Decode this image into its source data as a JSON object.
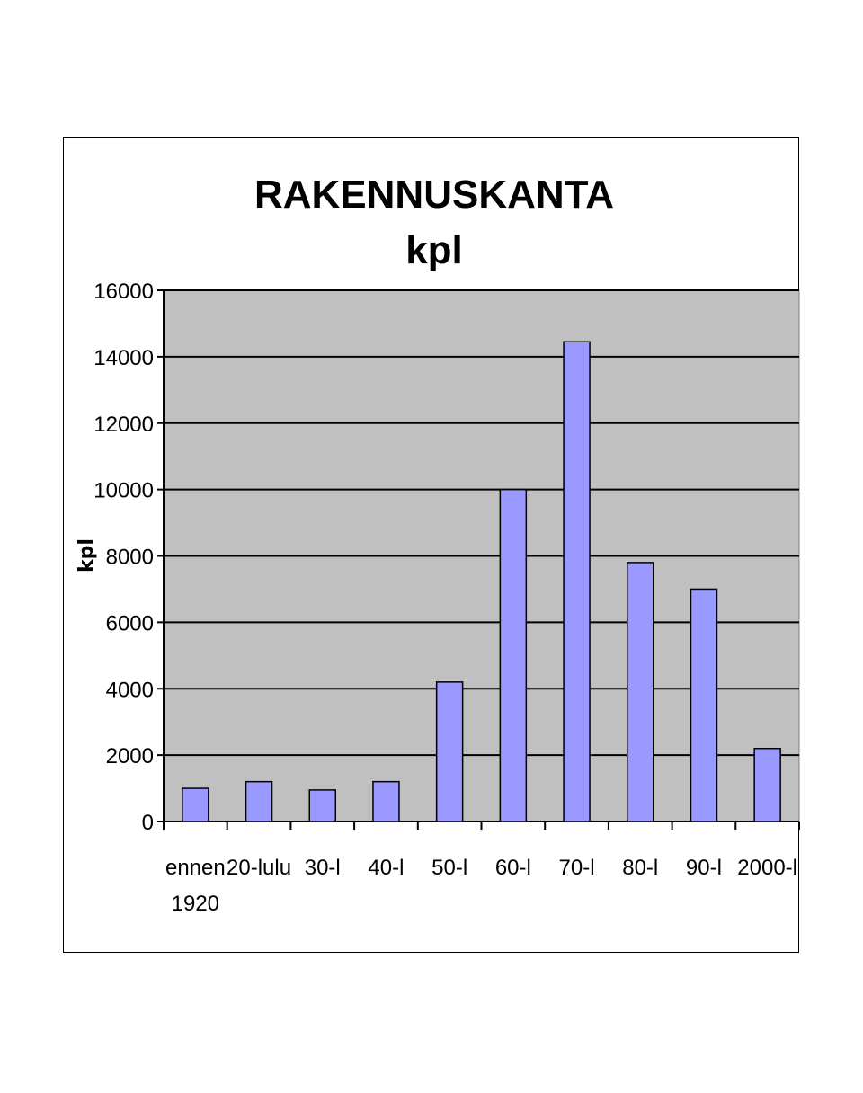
{
  "chart_data": {
    "type": "bar",
    "title": "RAKENNUSKANTA",
    "subtitle": "kpl",
    "ylabel": "kpl",
    "xlabel": "",
    "categories": [
      [
        "ennen",
        "1920"
      ],
      [
        "20-lulu"
      ],
      [
        "30-l"
      ],
      [
        "40-l"
      ],
      [
        "50-l"
      ],
      [
        "60-l"
      ],
      [
        "70-l"
      ],
      [
        "80-l"
      ],
      [
        "90-l"
      ],
      [
        "2000-l"
      ]
    ],
    "values": [
      1000,
      1200,
      950,
      1200,
      4200,
      10000,
      14450,
      7800,
      7000,
      2200
    ],
    "ylim": [
      0,
      16000
    ],
    "yticks": [
      0,
      2000,
      4000,
      6000,
      8000,
      10000,
      12000,
      14000,
      16000
    ],
    "grid": true,
    "legend": "none",
    "colors": {
      "bar_fill": "#9999ff",
      "bar_stroke": "#000000",
      "plot_bg": "#c0c0c0",
      "gridline": "#000000"
    }
  }
}
